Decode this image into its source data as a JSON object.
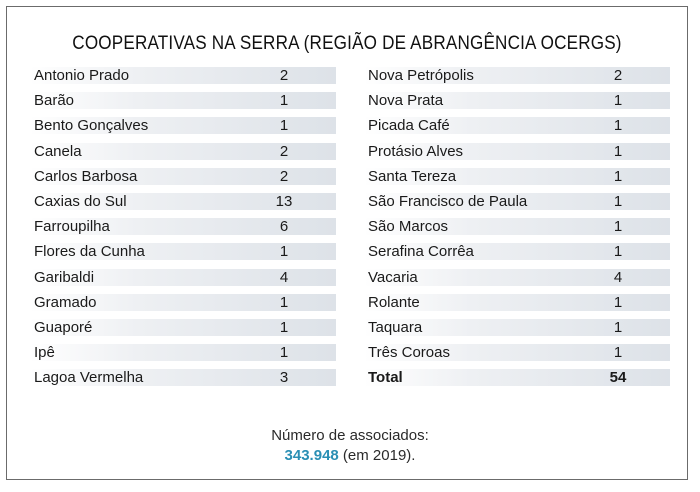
{
  "title": "COOPERATIVAS NA SERRA (REGIÃO DE ABRANGÊNCIA OCERGS)",
  "left_rows": [
    {
      "name": "Antonio Prado",
      "value": "2"
    },
    {
      "name": "Barão",
      "value": "1"
    },
    {
      "name": "Bento Gonçalves",
      "value": "1"
    },
    {
      "name": "Canela",
      "value": "2"
    },
    {
      "name": "Carlos Barbosa",
      "value": "2"
    },
    {
      "name": "Caxias do Sul",
      "value": "13"
    },
    {
      "name": "Farroupilha",
      "value": "6"
    },
    {
      "name": "Flores da Cunha",
      "value": "1"
    },
    {
      "name": "Garibaldi",
      "value": "4"
    },
    {
      "name": "Gramado",
      "value": "1"
    },
    {
      "name": "Guaporé",
      "value": "1"
    },
    {
      "name": "Ipê",
      "value": "1"
    },
    {
      "name": "Lagoa Vermelha",
      "value": "3"
    }
  ],
  "right_rows": [
    {
      "name": "Nova Petrópolis",
      "value": "2"
    },
    {
      "name": "Nova Prata",
      "value": "1"
    },
    {
      "name": "Picada Café",
      "value": "1"
    },
    {
      "name": "Protásio Alves",
      "value": "1"
    },
    {
      "name": "Santa Tereza",
      "value": "1"
    },
    {
      "name": "São Francisco de Paula",
      "value": "1"
    },
    {
      "name": "São Marcos",
      "value": "1"
    },
    {
      "name": "Serafina Corrêa",
      "value": "1"
    },
    {
      "name": "Vacaria",
      "value": "4"
    },
    {
      "name": "Rolante",
      "value": "1"
    },
    {
      "name": "Taquara",
      "value": "1"
    },
    {
      "name": "Três Coroas",
      "value": "1"
    }
  ],
  "total": {
    "label": "Total",
    "value": "54"
  },
  "footer": {
    "line1": "Número de associados:",
    "number": "343.948",
    "suffix": " (em 2019)."
  },
  "colors": {
    "accent": "#2a8fb4",
    "row_shade": "#dde2e8",
    "border": "#6b6b6b"
  }
}
